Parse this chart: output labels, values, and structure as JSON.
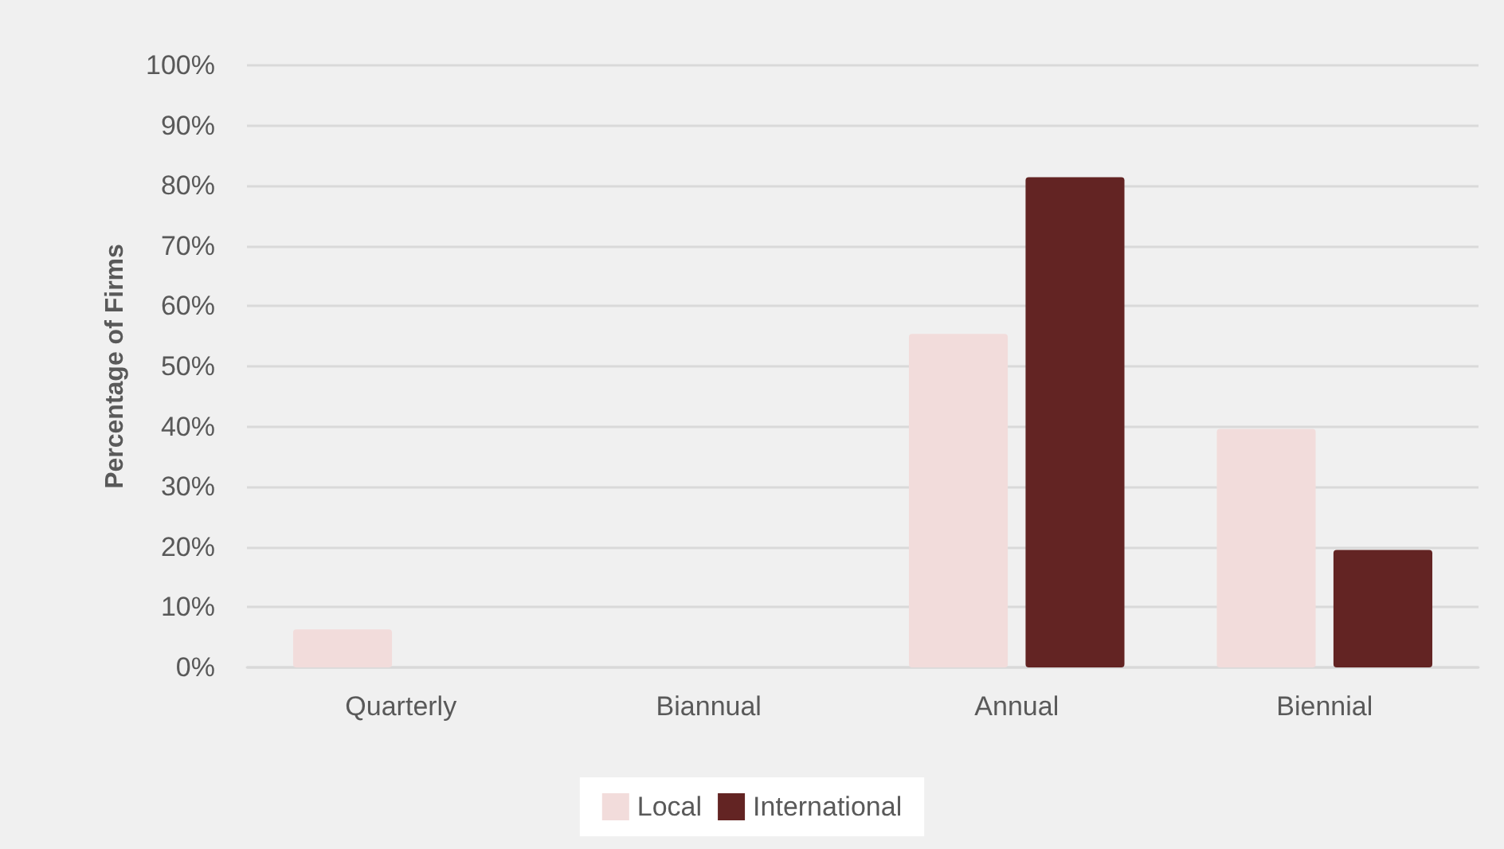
{
  "chart_data": {
    "type": "bar",
    "ylabel": "Percentage of Firms",
    "categories": [
      "Quarterly",
      "Biannual",
      "Annual",
      "Biennial"
    ],
    "series": [
      {
        "name": "Local",
        "color": "#f2dcdb",
        "values": [
          6.3,
          0,
          55.4,
          39.6
        ]
      },
      {
        "name": "International",
        "color": "#632423",
        "values": [
          0,
          0,
          81.4,
          19.5
        ]
      }
    ],
    "ylim": [
      0,
      100
    ],
    "yticks": [
      {
        "value": 0,
        "label": "0%"
      },
      {
        "value": 10,
        "label": "10%"
      },
      {
        "value": 20,
        "label": "20%"
      },
      {
        "value": 30,
        "label": "30%"
      },
      {
        "value": 40,
        "label": "40%"
      },
      {
        "value": 50,
        "label": "50%"
      },
      {
        "value": 60,
        "label": "60%"
      },
      {
        "value": 70,
        "label": "70%"
      },
      {
        "value": 80,
        "label": "80%"
      },
      {
        "value": 90,
        "label": "90%"
      },
      {
        "value": 100,
        "label": "100%"
      }
    ],
    "grid": "y",
    "legend": "bottom"
  }
}
